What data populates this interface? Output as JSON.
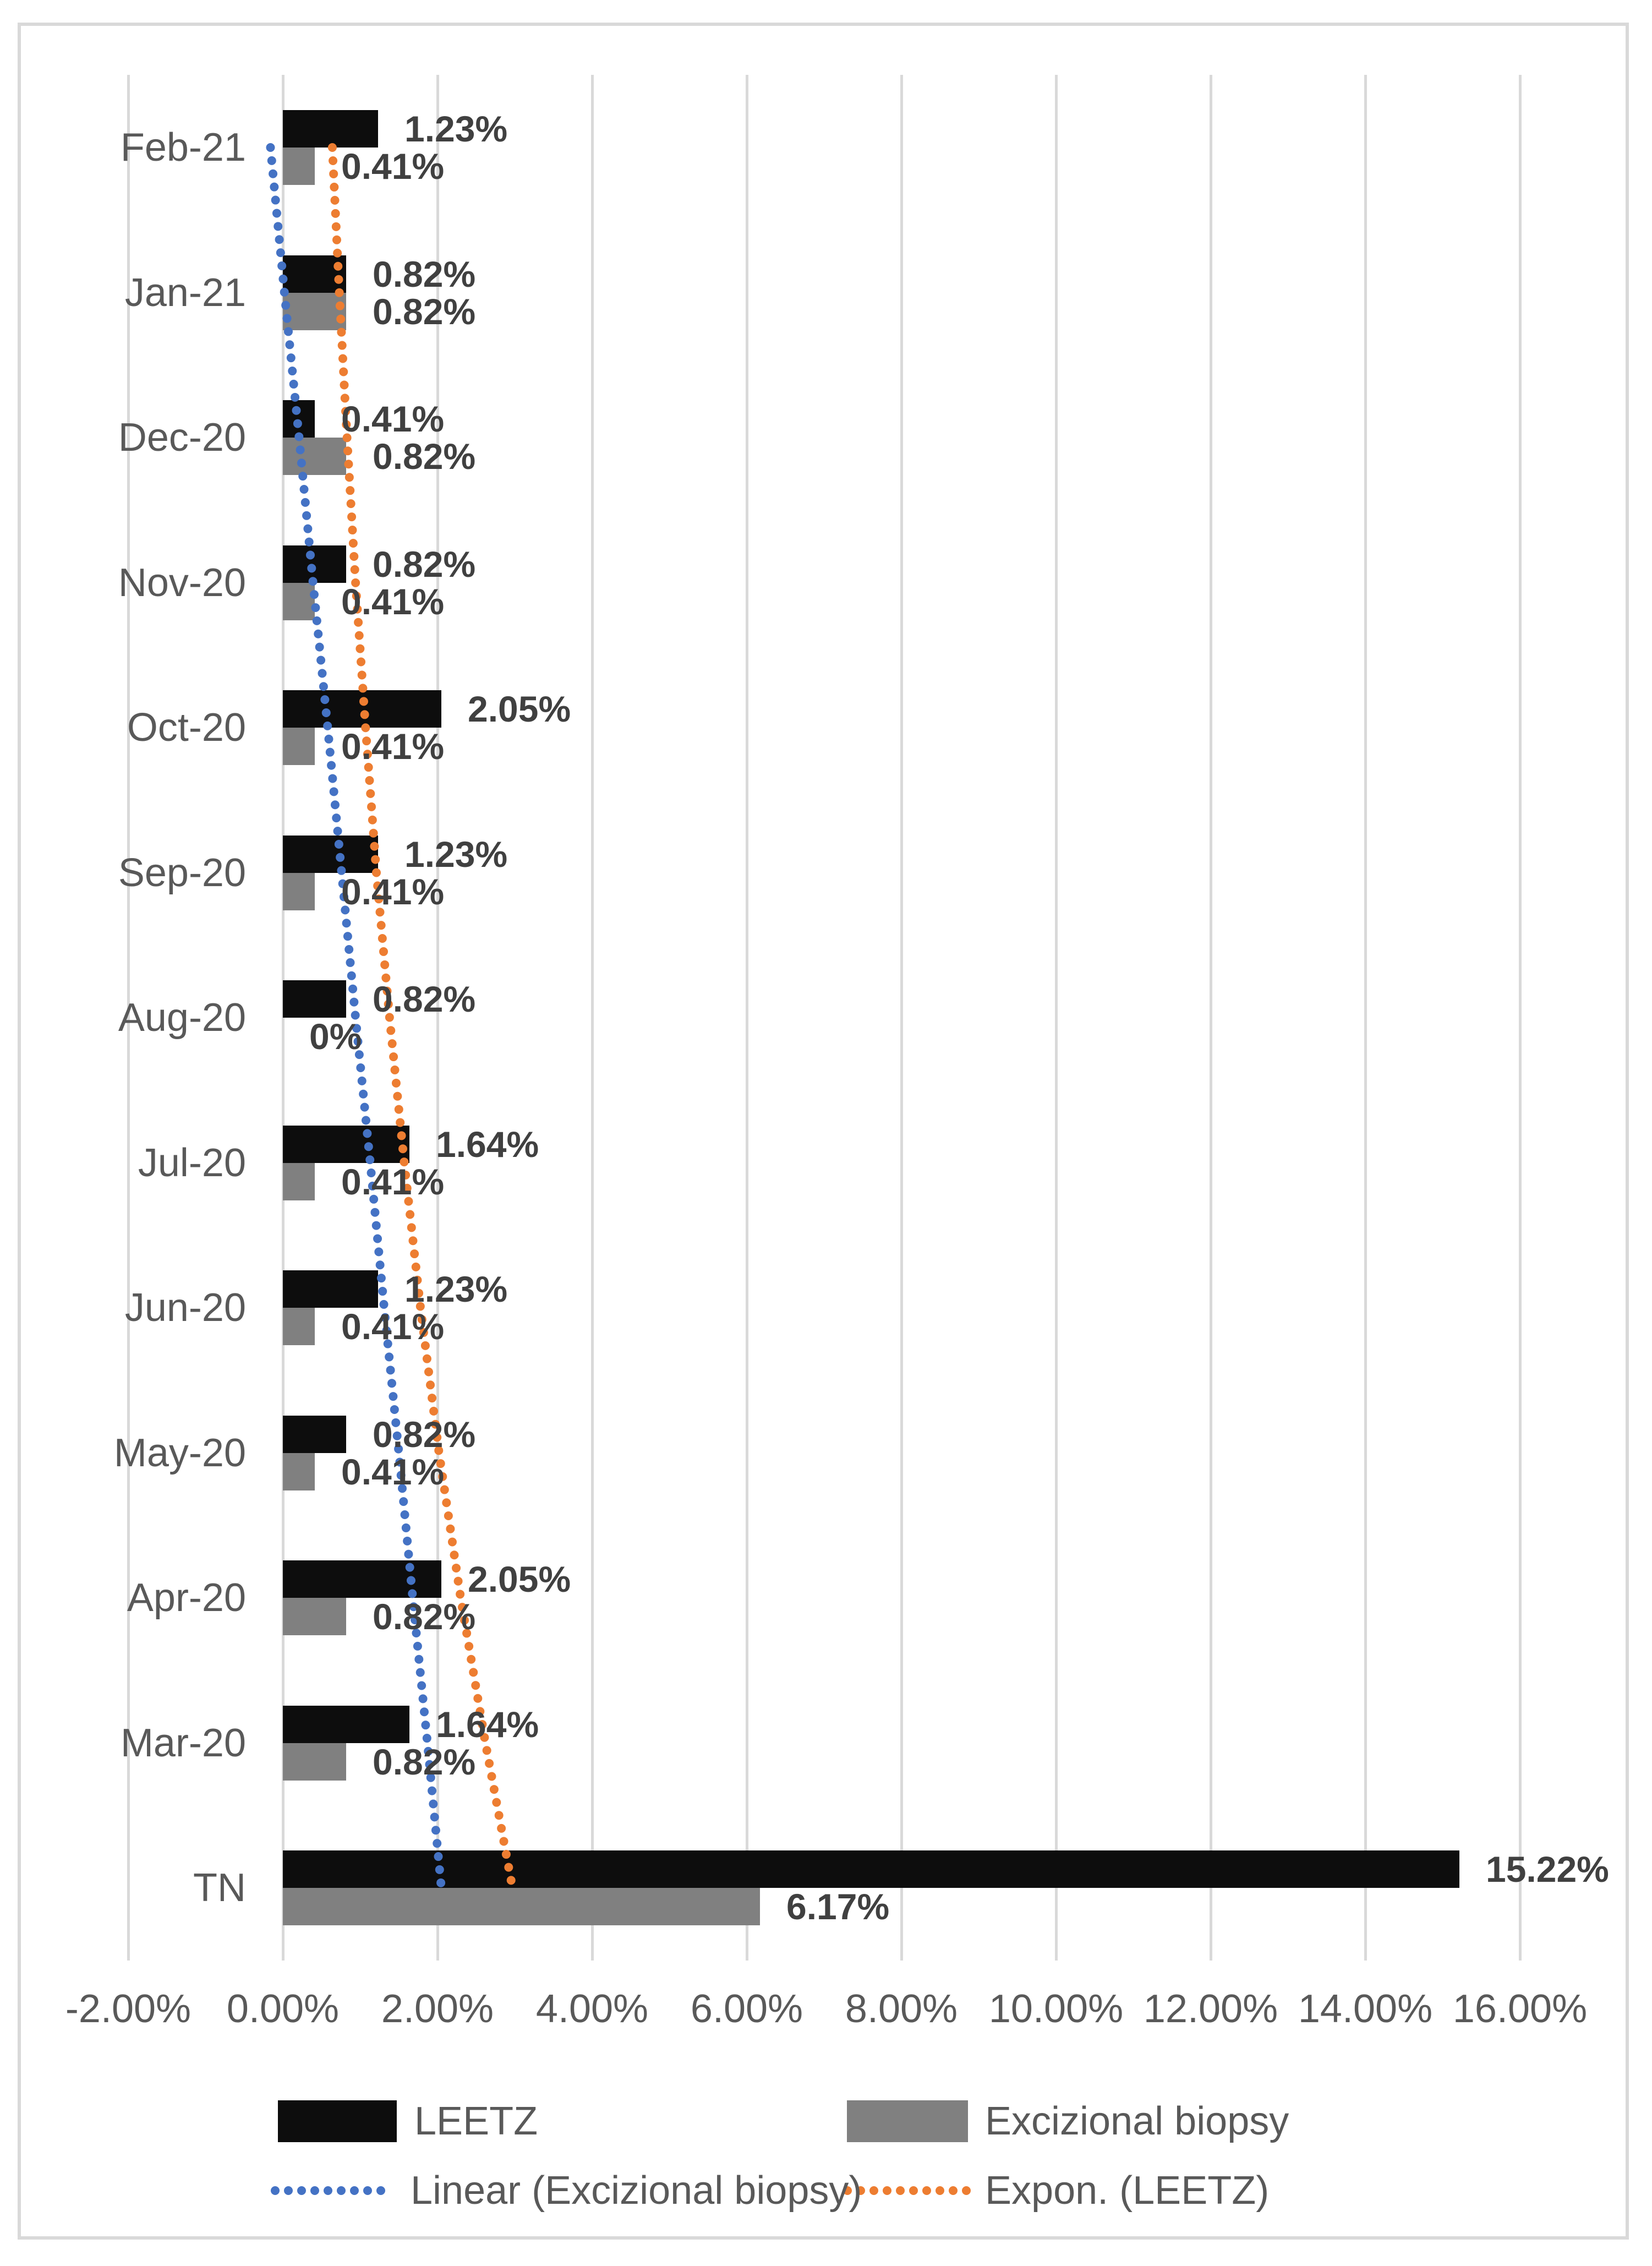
{
  "chart_data": {
    "type": "bar",
    "orientation": "horizontal",
    "title": "",
    "categories": [
      "Feb-21",
      "Jan-21",
      "Dec-20",
      "Nov-20",
      "Oct-20",
      "Sep-20",
      "Aug-20",
      "Jul-20",
      "Jun-20",
      "May-20",
      "Apr-20",
      "Mar-20",
      "TN"
    ],
    "series": [
      {
        "name": "LEETZ",
        "color": "#0d0d0d",
        "values": [
          1.23,
          0.82,
          0.41,
          0.82,
          2.05,
          1.23,
          0.82,
          1.64,
          1.23,
          0.82,
          2.05,
          1.64,
          15.22
        ],
        "labels": [
          "1.23%",
          "0.82%",
          "0.41%",
          "0.82%",
          "2.05%",
          "1.23%",
          "0.82%",
          "1.64%",
          "1.23%",
          "0.82%",
          "2.05%",
          "1.64%",
          "15.22%"
        ]
      },
      {
        "name": "Excizional biopsy",
        "color": "#808080",
        "values": [
          0.41,
          0.82,
          0.82,
          0.41,
          0.41,
          0.41,
          0,
          0.41,
          0.41,
          0.41,
          0.82,
          0.82,
          6.17
        ],
        "labels": [
          "0.41%",
          "0.82%",
          "0.82%",
          "0.41%",
          "0.41%",
          "0.41%",
          "0%",
          "0.41%",
          "0.41%",
          "0.41%",
          "0.82%",
          "0.82%",
          "6.17%"
        ]
      }
    ],
    "trendlines": [
      {
        "name": "Linear (Excizional biopsy)",
        "trend_type": "linear",
        "color": "#4472c4",
        "points_pct": [
          -0.16,
          0.02,
          0.21,
          0.39,
          0.58,
          0.76,
          0.94,
          1.13,
          1.31,
          1.5,
          1.68,
          1.87,
          2.05
        ]
      },
      {
        "name": "Expon. (LEETZ)",
        "trend_type": "exponential",
        "color": "#ed7d31",
        "points_pct": [
          0.64,
          0.73,
          0.83,
          0.94,
          1.07,
          1.21,
          1.38,
          1.57,
          1.78,
          2.02,
          2.3,
          2.62,
          2.97
        ]
      }
    ],
    "x_axis": {
      "tick_values": [
        -2,
        0,
        2,
        4,
        6,
        8,
        10,
        12,
        14,
        16
      ],
      "tick_labels": [
        "-2.00%",
        "0.00%",
        "2.00%",
        "4.00%",
        "6.00%",
        "8.00%",
        "10.00%",
        "12.00%",
        "14.00%",
        "16.00%"
      ],
      "min": -2,
      "max": 16,
      "step": 2,
      "grid": true
    },
    "ylim": [
      -2,
      16
    ],
    "xlabel": "",
    "ylabel": "",
    "legend_position": "bottom",
    "legend": {
      "bar_entries": [
        "LEETZ",
        "Excizional biopsy"
      ],
      "line_entries": [
        "Linear (Excizional biopsy)",
        "Expon. (LEETZ)"
      ]
    },
    "colors": {
      "grid": "#d9d9d9",
      "frame_border": "#d9d9d9",
      "axis_text": "#595959",
      "category_text": "#595959",
      "data_label_text": "#404040",
      "background": "#ffffff"
    }
  }
}
